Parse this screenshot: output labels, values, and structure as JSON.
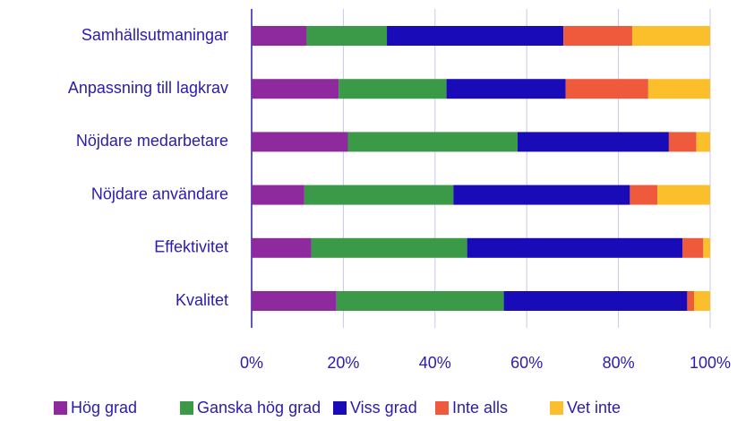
{
  "chart_data": {
    "type": "bar",
    "orientation": "horizontal",
    "stacked": true,
    "categories": [
      "Samhällsutmaningar",
      "Anpassning till lagkrav",
      "Nöjdare medarbetare",
      "Nöjdare användare",
      "Effektivitet",
      "Kvalitet"
    ],
    "series": [
      {
        "name": "Hög grad",
        "color": "#8e2a9e",
        "values": [
          12,
          19,
          21,
          11.5,
          13,
          18.5
        ]
      },
      {
        "name": "Ganska hög grad",
        "color": "#3a9a48",
        "values": [
          17.5,
          23.5,
          37,
          32.5,
          34,
          36.5
        ]
      },
      {
        "name": "Viss grad",
        "color": "#1a0bb8",
        "values": [
          38.5,
          26,
          33,
          38.5,
          47,
          40
        ]
      },
      {
        "name": "Inte alls",
        "color": "#ef5a3c",
        "values": [
          15,
          18,
          6,
          6,
          4.5,
          1.5
        ]
      },
      {
        "name": "Vet inte",
        "color": "#fbbf2c",
        "values": [
          17,
          13.5,
          3,
          11.5,
          1.5,
          3.5
        ]
      }
    ],
    "xlim": [
      0,
      100
    ],
    "xticks": [
      {
        "value": 0,
        "label": "0%"
      },
      {
        "value": 20,
        "label": "20%"
      },
      {
        "value": 40,
        "label": "40%"
      },
      {
        "value": 60,
        "label": "60%"
      },
      {
        "value": 80,
        "label": "80%"
      },
      {
        "value": 100,
        "label": "100%"
      }
    ],
    "grid": true,
    "legend": "bottom"
  }
}
